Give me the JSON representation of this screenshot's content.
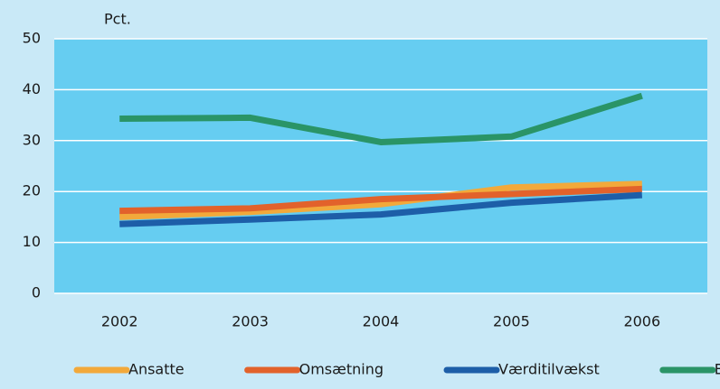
{
  "chart_data": {
    "type": "line",
    "y_label": "Pct.",
    "categories": [
      "2002",
      "2003",
      "2004",
      "2005",
      "2006"
    ],
    "series": [
      {
        "name": "Ansatte",
        "color": "#f2a93b",
        "values": [
          15,
          16,
          17.5,
          20.8,
          21.5
        ]
      },
      {
        "name": "Omsætning",
        "color": "#e2622b",
        "values": [
          16.2,
          16.7,
          18.5,
          19.5,
          20.5
        ]
      },
      {
        "name": "Værditilvækst",
        "color": "#1d5ea8",
        "values": [
          13.6,
          14.5,
          15.5,
          17.8,
          19.3
        ]
      },
      {
        "name": "Eksport",
        "color": "#2a9467",
        "values": [
          34.3,
          34.5,
          29.7,
          30.8,
          38.8
        ]
      }
    ],
    "ylim": [
      0,
      50
    ],
    "yticks": [
      0,
      10,
      20,
      30,
      40,
      50
    ],
    "grid": true,
    "legend": "bottom"
  }
}
